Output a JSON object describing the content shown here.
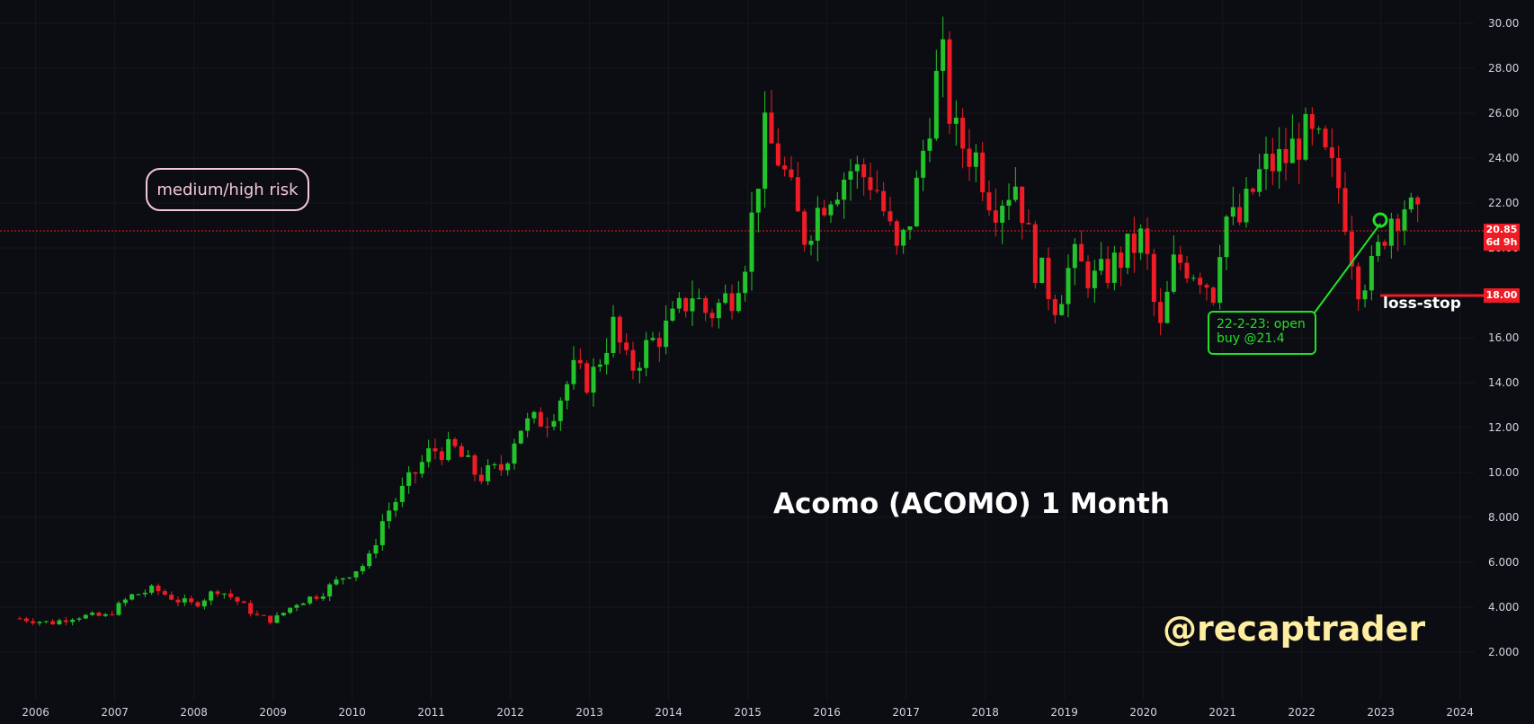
{
  "risk_label": "medium/high risk",
  "title": "Acomo (ACOMO) 1 Month",
  "handle": "@recaptrader",
  "trade_note": {
    "line1": "22-2-23: open",
    "line2": "buy @21.4"
  },
  "stop_label": "loss-stop",
  "last_price": {
    "value": "20.85",
    "countdown": "6d 9h"
  },
  "stop_price": "18.00",
  "colors": {
    "background": "#0c0d12",
    "up": "#22c32b",
    "down": "#f01c25",
    "note": "#22e028",
    "risk": "#f4c8d6",
    "handle": "#ffeea0"
  },
  "chart_data": {
    "type": "candlestick",
    "title": "Acomo (ACOMO) 1 Month",
    "x_range": [
      2005.75,
      2024.2
    ],
    "y_range": [
      1,
      31.2
    ],
    "x_ticks": [
      "2006",
      "2007",
      "2008",
      "2009",
      "2010",
      "2011",
      "2012",
      "2013",
      "2014",
      "2015",
      "2016",
      "2017",
      "2018",
      "2019",
      "2020",
      "2021",
      "2022",
      "2023",
      "2024"
    ],
    "y_ticks": [
      "2.000",
      "4.000",
      "6.000",
      "8.000",
      "10.00",
      "12.00",
      "14.00",
      "16.00",
      "18.00",
      "20.00",
      "22.00",
      "24.00",
      "26.00",
      "28.00",
      "30.00"
    ],
    "last_price": 20.85,
    "loss_stop": 18.0,
    "trade_entry": {
      "date": "2023-02-22",
      "price": 21.4
    },
    "series": [
      {
        "name": "ACOMO",
        "points": [
          [
            2005.8,
            3.5
          ],
          [
            2006.0,
            3.4
          ],
          [
            2006.2,
            3.3
          ],
          [
            2006.5,
            3.6
          ],
          [
            2006.9,
            3.6
          ],
          [
            2007.0,
            3.9
          ],
          [
            2007.2,
            4.5
          ],
          [
            2007.5,
            4.8
          ],
          [
            2007.8,
            4.3
          ],
          [
            2008.0,
            4.1
          ],
          [
            2008.3,
            4.8
          ],
          [
            2008.5,
            4.4
          ],
          [
            2008.8,
            3.6
          ],
          [
            2009.0,
            3.4
          ],
          [
            2009.3,
            4.2
          ],
          [
            2009.6,
            4.6
          ],
          [
            2009.9,
            5.4
          ],
          [
            2010.2,
            6.0
          ],
          [
            2010.4,
            8.0
          ],
          [
            2010.7,
            9.5
          ],
          [
            2011.0,
            11.0
          ],
          [
            2011.3,
            11.0
          ],
          [
            2011.6,
            9.8
          ],
          [
            2011.9,
            10.2
          ],
          [
            2012.1,
            12.0
          ],
          [
            2012.5,
            12.5
          ],
          [
            2012.8,
            14.5
          ],
          [
            2013.0,
            14.0
          ],
          [
            2013.3,
            16.5
          ],
          [
            2013.5,
            14.5
          ],
          [
            2013.7,
            15.5
          ],
          [
            2014.0,
            16.5
          ],
          [
            2014.3,
            18.0
          ],
          [
            2014.5,
            17.0
          ],
          [
            2014.8,
            18.0
          ],
          [
            2015.0,
            20.0
          ],
          [
            2015.2,
            25.0
          ],
          [
            2015.4,
            24.0
          ],
          [
            2015.7,
            20.5
          ],
          [
            2016.0,
            22.5
          ],
          [
            2016.3,
            23.5
          ],
          [
            2016.6,
            23.0
          ],
          [
            2016.9,
            19.5
          ],
          [
            2017.1,
            22.0
          ],
          [
            2017.3,
            26.0
          ],
          [
            2017.45,
            28.5
          ],
          [
            2017.6,
            25.0
          ],
          [
            2017.9,
            24.0
          ],
          [
            2018.1,
            22.0
          ],
          [
            2018.4,
            23.0
          ],
          [
            2018.6,
            19.5
          ],
          [
            2018.9,
            17.5
          ],
          [
            2019.1,
            19.5
          ],
          [
            2019.4,
            18.5
          ],
          [
            2019.7,
            19.5
          ],
          [
            2020.0,
            20.5
          ],
          [
            2020.2,
            16.0
          ],
          [
            2020.4,
            19.5
          ],
          [
            2020.7,
            19.0
          ],
          [
            2020.9,
            18.0
          ],
          [
            2021.0,
            21.5
          ],
          [
            2021.2,
            21.0
          ],
          [
            2021.5,
            23.5
          ],
          [
            2021.8,
            24.0
          ],
          [
            2022.0,
            25.0
          ],
          [
            2022.2,
            24.5
          ],
          [
            2022.5,
            22.5
          ],
          [
            2022.7,
            18.5
          ],
          [
            2022.9,
            19.0
          ],
          [
            2023.1,
            21.4
          ],
          [
            2023.3,
            22.0
          ],
          [
            2023.5,
            20.85
          ]
        ]
      }
    ]
  }
}
